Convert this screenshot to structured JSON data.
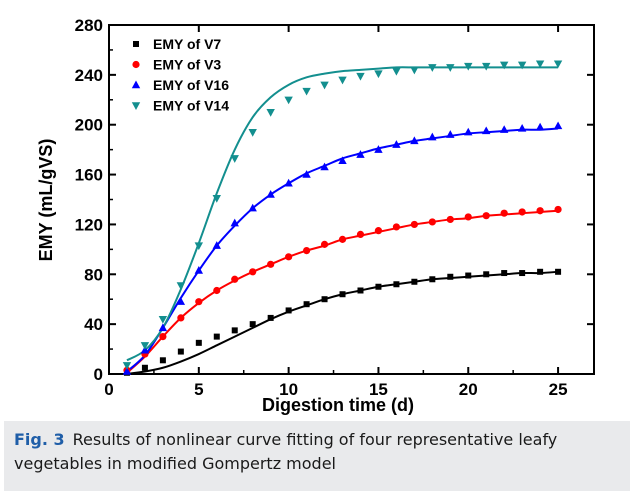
{
  "chart_data": {
    "type": "scatter",
    "xlabel": "Digestion time (d)",
    "ylabel": "EMY (mL/gVS)",
    "xlim": [
      0,
      27
    ],
    "ylim": [
      0,
      280
    ],
    "xticks": [
      0,
      5,
      10,
      15,
      20,
      25
    ],
    "yticks": [
      0,
      40,
      80,
      120,
      160,
      200,
      240,
      280
    ],
    "legend_position": "top-left",
    "series": [
      {
        "name": "EMY of V7",
        "marker": "square",
        "color": "#000000",
        "x": [
          1,
          2,
          3,
          4,
          5,
          6,
          7,
          8,
          9,
          10,
          11,
          12,
          13,
          14,
          15,
          16,
          17,
          18,
          19,
          20,
          21,
          22,
          23,
          24,
          25
        ],
        "y": [
          1,
          5,
          11,
          18,
          25,
          30,
          35,
          40,
          45,
          51,
          56,
          60,
          64,
          67,
          70,
          72,
          74,
          76,
          78,
          79,
          80,
          81,
          81,
          82,
          82
        ],
        "fit": [
          0,
          2,
          5,
          10,
          16,
          23,
          30,
          37,
          44,
          50,
          55,
          60,
          64,
          67,
          70,
          72,
          74,
          76,
          77,
          78,
          79,
          80,
          81,
          81,
          82
        ]
      },
      {
        "name": "EMY of V3",
        "marker": "circle",
        "color": "#ff0000",
        "x": [
          1,
          2,
          3,
          4,
          5,
          6,
          7,
          8,
          9,
          10,
          11,
          12,
          13,
          14,
          15,
          16,
          17,
          18,
          19,
          20,
          21,
          22,
          23,
          24,
          25
        ],
        "y": [
          3,
          16,
          30,
          45,
          58,
          67,
          76,
          82,
          88,
          94,
          99,
          104,
          108,
          112,
          115,
          118,
          120,
          122,
          124,
          126,
          127,
          129,
          130,
          131,
          132
        ],
        "fit": [
          1,
          14,
          30,
          45,
          57,
          67,
          75,
          82,
          88,
          94,
          99,
          103,
          108,
          111,
          114,
          117,
          120,
          122,
          124,
          125,
          127,
          128,
          129,
          130,
          131
        ]
      },
      {
        "name": "EMY of V16",
        "marker": "triangle-up",
        "color": "#0000ff",
        "x": [
          1,
          2,
          3,
          4,
          5,
          6,
          7,
          8,
          9,
          10,
          11,
          12,
          13,
          14,
          15,
          16,
          17,
          18,
          19,
          20,
          21,
          22,
          23,
          24,
          25
        ],
        "y": [
          2,
          19,
          37,
          58,
          83,
          103,
          121,
          133,
          144,
          153,
          160,
          166,
          171,
          176,
          180,
          184,
          187,
          190,
          192,
          194,
          195,
          196,
          197,
          198,
          199
        ],
        "fit": [
          2,
          15,
          37,
          61,
          83,
          103,
          119,
          133,
          144,
          153,
          161,
          167,
          173,
          177,
          181,
          184,
          187,
          189,
          191,
          193,
          194,
          195,
          196,
          196,
          197
        ]
      },
      {
        "name": "EMY of V14",
        "marker": "triangle-down",
        "color": "#138f8f",
        "x": [
          1,
          2,
          3,
          4,
          5,
          6,
          7,
          8,
          9,
          10,
          11,
          12,
          13,
          14,
          15,
          16,
          17,
          18,
          19,
          20,
          21,
          22,
          23,
          24,
          25
        ],
        "y": [
          7,
          23,
          44,
          71,
          103,
          141,
          173,
          194,
          210,
          220,
          227,
          232,
          236,
          239,
          241,
          243,
          244,
          246,
          246,
          247,
          247,
          248,
          248,
          249,
          249
        ],
        "fit": [
          11,
          19,
          37,
          68,
          105,
          145,
          180,
          206,
          222,
          232,
          238,
          241,
          243,
          244,
          245,
          246,
          246,
          246,
          246,
          246,
          246,
          246,
          246,
          246,
          246
        ]
      }
    ]
  },
  "caption": {
    "label": "Fig. 3",
    "text": "Results of nonlinear curve fitting of four representative leafy vegetables in modified Gompertz model"
  }
}
